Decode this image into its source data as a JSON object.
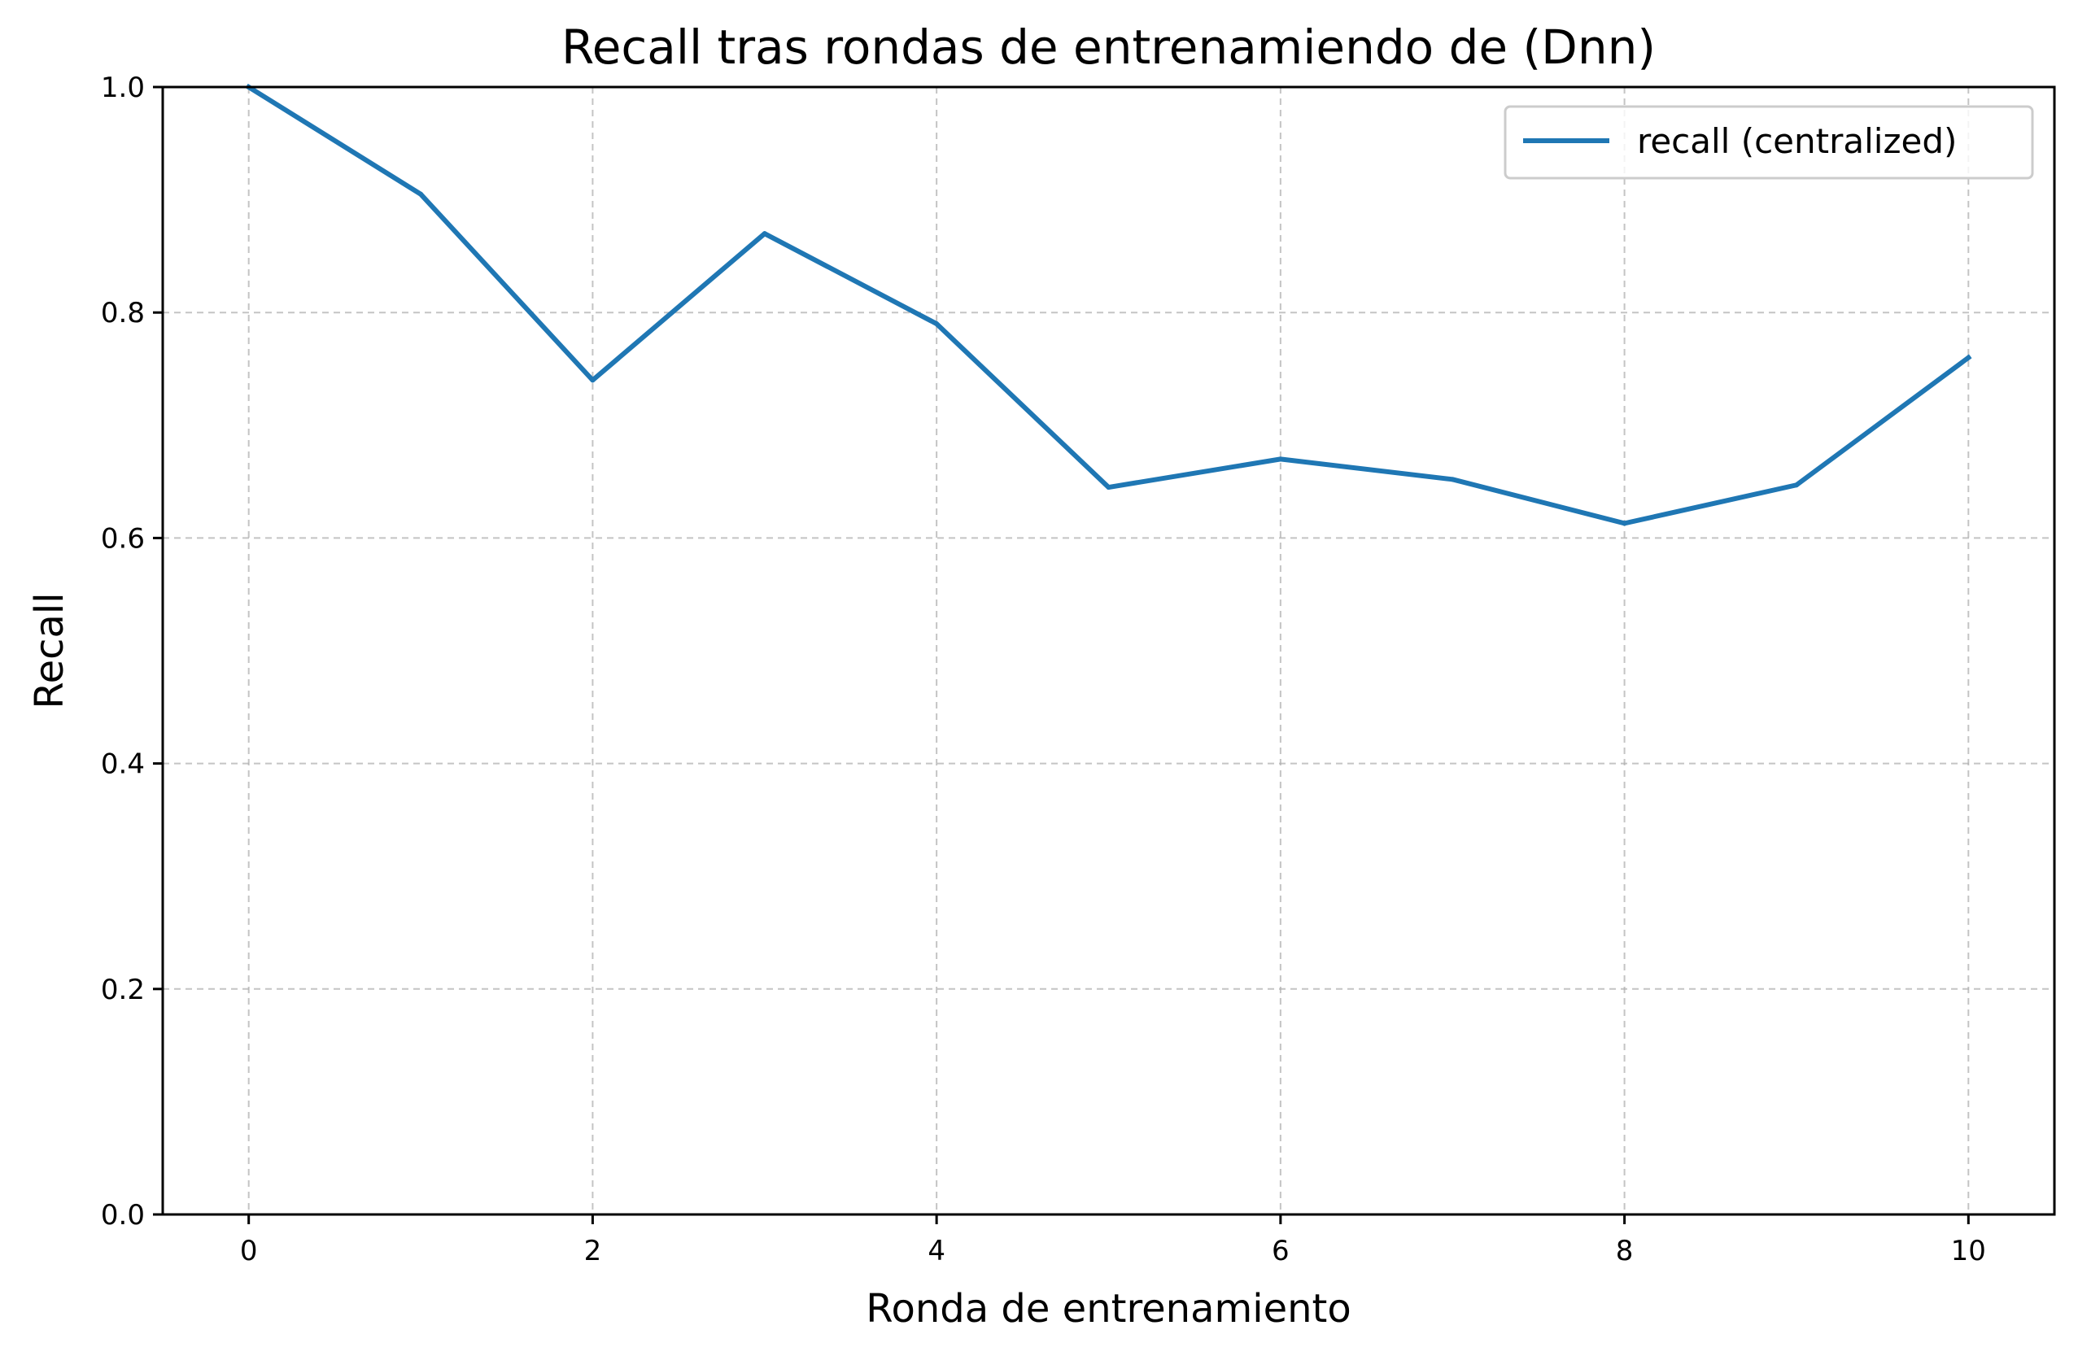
{
  "chart_data": {
    "type": "line",
    "title": "Recall tras rondas de entrenamiendo de (Dnn)",
    "xlabel": "Ronda de entrenamiento",
    "ylabel": "Recall",
    "xlim": [
      -0.5,
      10.5
    ],
    "ylim": [
      0.0,
      1.0
    ],
    "xticks": [
      0,
      2,
      4,
      6,
      8,
      10
    ],
    "xtick_labels": [
      "0",
      "2",
      "4",
      "6",
      "8",
      "10"
    ],
    "yticks": [
      0.0,
      0.2,
      0.4,
      0.6,
      0.8,
      1.0
    ],
    "ytick_labels": [
      "0.0",
      "0.2",
      "0.4",
      "0.6",
      "0.8",
      "1.0"
    ],
    "grid": true,
    "legend_position": "top-right",
    "x": [
      0,
      1,
      2,
      3,
      4,
      5,
      6,
      7,
      8,
      9,
      10
    ],
    "series": [
      {
        "name": "recall (centralized)",
        "color": "#1f77b4",
        "values": [
          1.0,
          0.905,
          0.74,
          0.87,
          0.79,
          0.645,
          0.67,
          0.652,
          0.613,
          0.647,
          0.76
        ]
      }
    ]
  }
}
